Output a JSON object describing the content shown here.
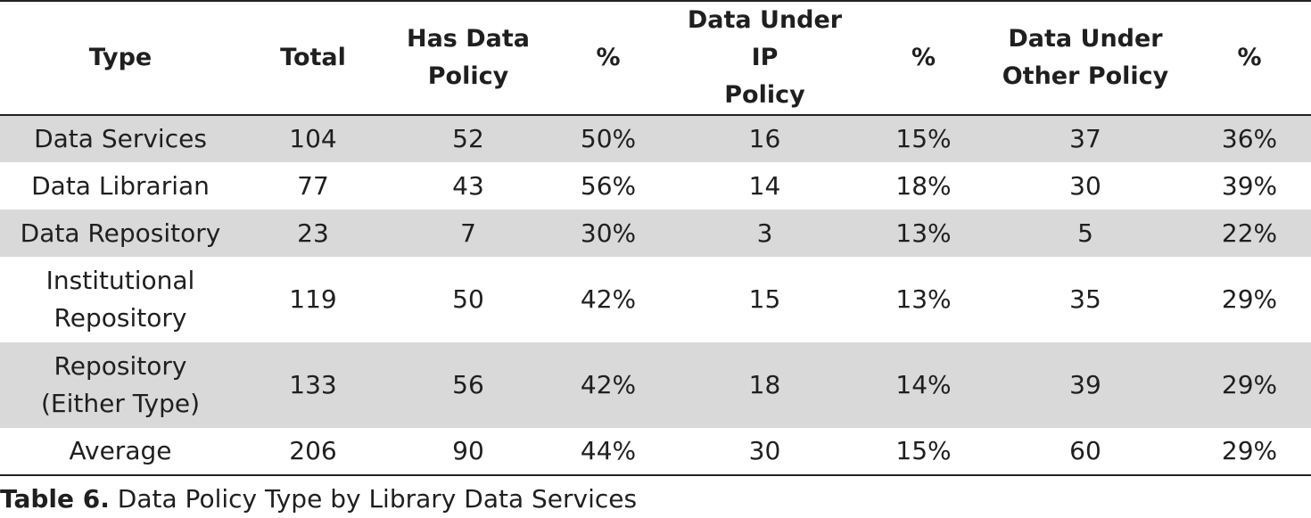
{
  "table": {
    "headers": [
      [
        "Type"
      ],
      [
        "Total"
      ],
      [
        "Has Data",
        "Policy"
      ],
      [
        "%"
      ],
      [
        "Data Under IP",
        "Policy"
      ],
      [
        "%"
      ],
      [
        "Data Under",
        "Other Policy"
      ],
      [
        "%"
      ]
    ],
    "rows": [
      {
        "type": [
          "Data Services"
        ],
        "cells": [
          "104",
          "52",
          "50%",
          "16",
          "15%",
          "37",
          "36%"
        ],
        "shaded": true
      },
      {
        "type": [
          "Data Librarian"
        ],
        "cells": [
          "77",
          "43",
          "56%",
          "14",
          "18%",
          "30",
          "39%"
        ],
        "shaded": false
      },
      {
        "type": [
          "Data Repository"
        ],
        "cells": [
          "23",
          "7",
          "30%",
          "3",
          "13%",
          "5",
          "22%"
        ],
        "shaded": true
      },
      {
        "type": [
          "Institutional",
          "Repository"
        ],
        "cells": [
          "119",
          "50",
          "42%",
          "15",
          "13%",
          "35",
          "29%"
        ],
        "shaded": false
      },
      {
        "type": [
          "Repository",
          "(Either Type)"
        ],
        "cells": [
          "133",
          "56",
          "42%",
          "18",
          "14%",
          "39",
          "29%"
        ],
        "shaded": true
      },
      {
        "type": [
          "Average"
        ],
        "cells": [
          "206",
          "90",
          "44%",
          "30",
          "15%",
          "60",
          "29%"
        ],
        "shaded": false
      }
    ]
  },
  "caption": {
    "label": "Table 6.",
    "text": "Data Policy Type by Library Data Services"
  }
}
